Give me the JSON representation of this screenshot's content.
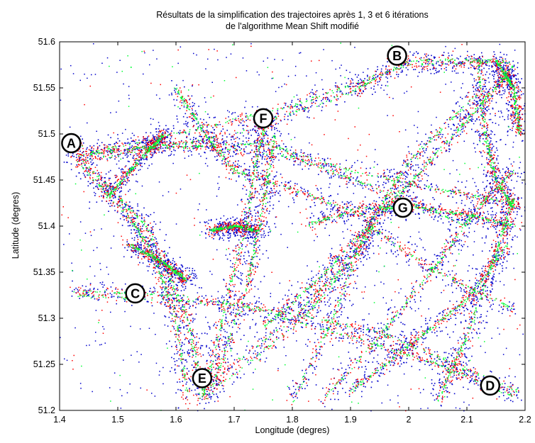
{
  "chart_data": {
    "type": "scatter",
    "title_line1": "Résultats de la simplification des trajectoires après 1, 3 et 6 itérations",
    "title_line2": "de l'algorithme Mean Shift modifié",
    "xlabel": "Longitude (degres)",
    "ylabel": "Latitude (degres)",
    "xlim": [
      1.4,
      2.2
    ],
    "ylim": [
      51.2,
      51.6
    ],
    "x_ticks": [
      "1.4",
      "1.5",
      "1.6",
      "1.7",
      "1.8",
      "1.9",
      "2",
      "2.1",
      "2.2"
    ],
    "y_ticks": [
      "51.2",
      "51.25",
      "51.3",
      "51.35",
      "51.4",
      "51.45",
      "51.5",
      "51.55",
      "51.6"
    ],
    "grid": false,
    "series_colors": [
      "#0000cc",
      "#ff0000",
      "#00ff33"
    ],
    "annotations": [
      {
        "label": "A",
        "x": 1.42,
        "y": 51.49
      },
      {
        "label": "B",
        "x": 1.98,
        "y": 51.585
      },
      {
        "label": "C",
        "x": 1.53,
        "y": 51.327
      },
      {
        "label": "D",
        "x": 2.14,
        "y": 51.227
      },
      {
        "label": "E",
        "x": 1.645,
        "y": 51.235
      },
      {
        "label": "F",
        "x": 1.75,
        "y": 51.517
      },
      {
        "label": "G",
        "x": 1.99,
        "y": 51.42
      }
    ],
    "routes": [
      [
        [
          1.42,
          51.475
        ],
        [
          1.6,
          51.5
        ],
        [
          1.8,
          51.53
        ],
        [
          2.0,
          51.575
        ],
        [
          2.17,
          51.578
        ]
      ],
      [
        [
          1.43,
          51.47
        ],
        [
          1.7,
          51.5
        ],
        [
          1.9,
          51.545
        ],
        [
          2.0,
          51.58
        ],
        [
          2.15,
          51.58
        ]
      ],
      [
        [
          1.43,
          51.485
        ],
        [
          1.6,
          51.485
        ],
        [
          1.75,
          51.49
        ],
        [
          1.9,
          51.46
        ],
        [
          2.05,
          51.44
        ],
        [
          2.18,
          51.425
        ]
      ],
      [
        [
          1.42,
          51.475
        ],
        [
          1.6,
          51.49
        ],
        [
          1.8,
          51.475
        ],
        [
          1.95,
          51.44
        ],
        [
          2.1,
          51.4
        ]
      ],
      [
        [
          1.62,
          51.21
        ],
        [
          1.8,
          51.3
        ],
        [
          1.88,
          51.35
        ],
        [
          1.95,
          51.41
        ],
        [
          2.05,
          51.48
        ],
        [
          2.15,
          51.55
        ],
        [
          2.18,
          51.575
        ]
      ],
      [
        [
          1.64,
          51.21
        ],
        [
          1.82,
          51.3
        ],
        [
          1.9,
          51.36
        ],
        [
          1.96,
          51.42
        ],
        [
          2.08,
          51.5
        ],
        [
          2.17,
          51.565
        ]
      ],
      [
        [
          1.8,
          51.21
        ],
        [
          1.87,
          51.3
        ],
        [
          1.93,
          51.4
        ],
        [
          2.0,
          51.47
        ],
        [
          2.12,
          51.545
        ]
      ],
      [
        [
          1.42,
          51.33
        ],
        [
          1.6,
          51.325
        ],
        [
          1.8,
          51.305
        ],
        [
          1.95,
          51.285
        ],
        [
          2.08,
          51.25
        ],
        [
          2.19,
          51.22
        ]
      ],
      [
        [
          1.43,
          51.325
        ],
        [
          1.7,
          51.315
        ],
        [
          1.9,
          51.28
        ],
        [
          2.05,
          51.25
        ],
        [
          2.18,
          51.215
        ]
      ],
      [
        [
          1.75,
          51.29
        ],
        [
          1.85,
          51.345
        ],
        [
          1.93,
          51.4
        ],
        [
          2.05,
          51.35
        ],
        [
          2.18,
          51.31
        ]
      ],
      [
        [
          1.43,
          51.47
        ],
        [
          1.52,
          51.41
        ],
        [
          1.56,
          51.37
        ],
        [
          1.6,
          51.3
        ],
        [
          1.62,
          51.21
        ]
      ],
      [
        [
          1.44,
          51.47
        ],
        [
          1.55,
          51.4
        ],
        [
          1.62,
          51.3
        ],
        [
          1.65,
          51.21
        ]
      ],
      [
        [
          1.48,
          51.43
        ],
        [
          1.55,
          51.48
        ],
        [
          1.58,
          51.5
        ]
      ],
      [
        [
          1.65,
          51.22
        ],
        [
          1.68,
          51.3
        ],
        [
          1.72,
          51.4
        ],
        [
          1.74,
          51.48
        ],
        [
          1.76,
          51.52
        ]
      ],
      [
        [
          1.66,
          51.22
        ],
        [
          1.72,
          51.33
        ],
        [
          1.75,
          51.42
        ],
        [
          1.77,
          51.5
        ]
      ],
      [
        [
          1.85,
          51.21
        ],
        [
          1.95,
          51.28
        ],
        [
          2.05,
          51.36
        ],
        [
          2.12,
          51.42
        ],
        [
          2.18,
          51.46
        ]
      ],
      [
        [
          1.9,
          51.22
        ],
        [
          2.0,
          51.27
        ],
        [
          2.1,
          51.32
        ],
        [
          2.17,
          51.38
        ]
      ],
      [
        [
          2.05,
          51.21
        ],
        [
          2.1,
          51.28
        ],
        [
          2.15,
          51.37
        ],
        [
          2.18,
          51.43
        ]
      ],
      [
        [
          1.82,
          51.4
        ],
        [
          1.92,
          51.42
        ],
        [
          2.02,
          51.42
        ],
        [
          2.12,
          51.41
        ],
        [
          2.18,
          51.4
        ]
      ],
      [
        [
          1.6,
          51.55
        ],
        [
          1.65,
          51.5
        ],
        [
          1.7,
          51.46
        ],
        [
          1.8,
          51.44
        ],
        [
          1.93,
          51.41
        ]
      ],
      [
        [
          2.12,
          51.58
        ],
        [
          2.13,
          51.5
        ],
        [
          2.15,
          51.45
        ],
        [
          2.18,
          51.42
        ]
      ],
      [
        [
          2.15,
          51.58
        ],
        [
          2.18,
          51.55
        ],
        [
          2.19,
          51.5
        ]
      ],
      [
        [
          1.66,
          51.395
        ],
        [
          1.7,
          51.4
        ],
        [
          1.74,
          51.395
        ]
      ],
      [
        [
          1.52,
          51.38
        ],
        [
          1.58,
          51.36
        ],
        [
          1.62,
          51.34
        ]
      ]
    ]
  }
}
